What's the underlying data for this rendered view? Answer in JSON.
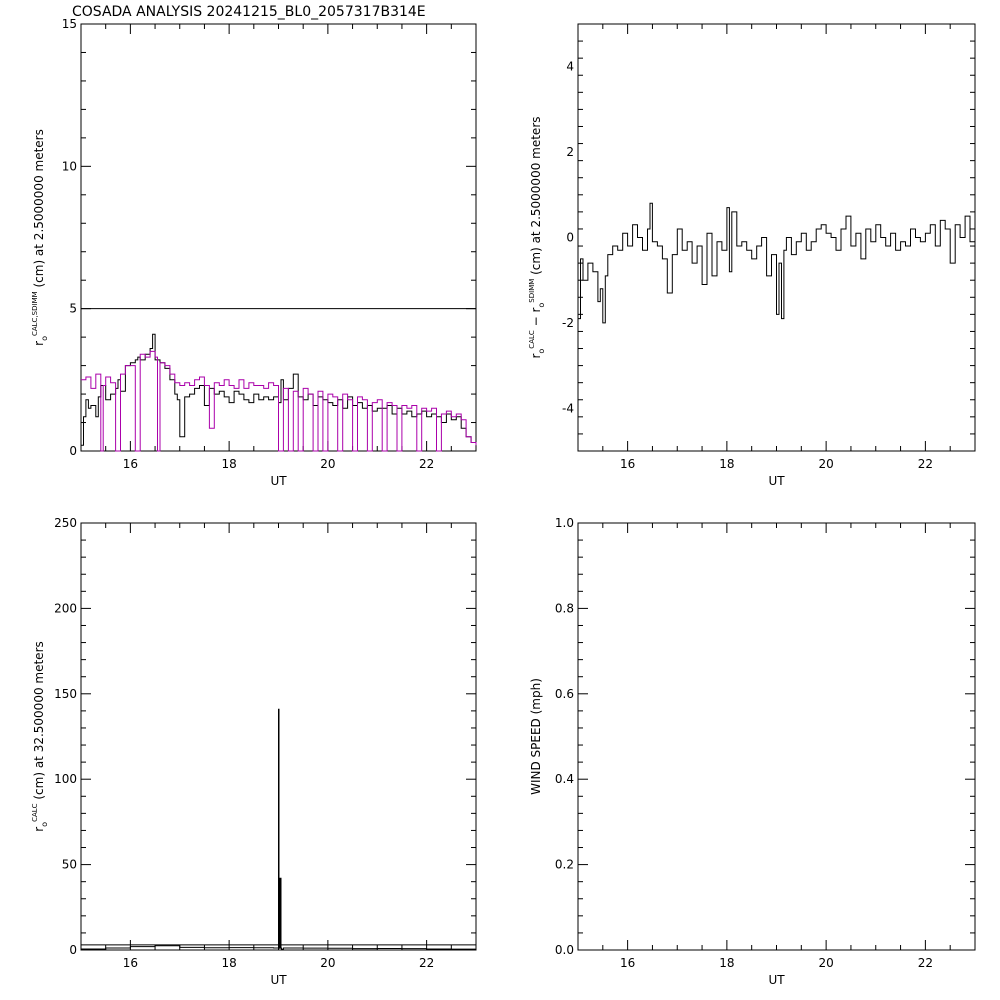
{
  "title": "COSADA ANALYSIS 20241215_BL0_2057317B314E",
  "colors": {
    "axis": "#000000",
    "black_series": "#000000",
    "magenta_series": "#aa00aa"
  },
  "chart_data": [
    {
      "type": "line",
      "panel": "top-left",
      "xlabel": "UT",
      "ylabel": {
        "main": "r",
        "sub": "o",
        "sup": "CALC,SDIMM",
        "rest": " (cm)  at  2.5000000 meters"
      },
      "xlim": [
        15,
        23
      ],
      "ylim": [
        0,
        15
      ],
      "xticks": [
        "16",
        "18",
        "20",
        "22"
      ],
      "xtick_values": [
        16,
        18,
        20,
        22
      ],
      "yticks": [
        "0",
        "5",
        "10",
        "15"
      ],
      "ytick_values": [
        0,
        5,
        10,
        15
      ],
      "hline": 5,
      "series": [
        {
          "color": "#000000",
          "x": [
            15.0,
            15.05,
            15.1,
            15.15,
            15.2,
            15.3,
            15.35,
            15.4,
            15.5,
            15.6,
            15.7,
            15.75,
            15.8,
            15.9,
            16.0,
            16.1,
            16.15,
            16.2,
            16.3,
            16.4,
            16.45,
            16.5,
            16.6,
            16.7,
            16.8,
            16.9,
            16.95,
            17.0,
            17.1,
            17.2,
            17.3,
            17.4,
            17.5,
            17.6,
            17.7,
            17.8,
            17.9,
            18.0,
            18.1,
            18.2,
            18.3,
            18.4,
            18.5,
            18.6,
            18.7,
            18.8,
            18.9,
            19.0,
            19.05,
            19.1,
            19.2,
            19.3,
            19.4,
            19.5,
            19.6,
            19.7,
            19.8,
            19.9,
            20.0,
            20.1,
            20.2,
            20.3,
            20.4,
            20.5,
            20.6,
            20.7,
            20.8,
            20.9,
            21.0,
            21.1,
            21.2,
            21.3,
            21.4,
            21.5,
            21.6,
            21.7,
            21.8,
            21.9,
            22.0,
            22.1,
            22.2,
            22.3,
            22.4,
            22.5,
            22.6,
            22.7,
            22.8,
            22.9,
            23.0
          ],
          "y": [
            0.2,
            1.2,
            1.8,
            1.5,
            1.6,
            1.2,
            1.9,
            2.3,
            1.8,
            2.0,
            2.2,
            2.5,
            2.1,
            3.0,
            3.1,
            3.2,
            3.3,
            3.2,
            3.4,
            3.6,
            4.1,
            3.2,
            3.1,
            2.9,
            2.5,
            2.0,
            1.8,
            0.5,
            1.9,
            2.0,
            2.2,
            2.3,
            1.6,
            2.2,
            2.0,
            2.1,
            1.9,
            1.7,
            2.1,
            2.0,
            1.8,
            1.7,
            2.0,
            1.8,
            1.9,
            1.8,
            1.9,
            1.7,
            2.5,
            1.8,
            2.2,
            2.7,
            1.9,
            1.8,
            2.0,
            1.6,
            1.9,
            1.8,
            1.7,
            1.6,
            1.8,
            1.5,
            1.9,
            1.6,
            1.7,
            1.5,
            1.6,
            1.4,
            1.5,
            1.5,
            1.6,
            1.3,
            1.5,
            1.3,
            1.4,
            1.2,
            1.3,
            1.4,
            1.2,
            1.3,
            1.2,
            1.0,
            1.3,
            1.1,
            1.2,
            0.8,
            0.5,
            0.3,
            0.1
          ]
        },
        {
          "color": "#aa00aa",
          "x": [
            15.0,
            15.1,
            15.2,
            15.3,
            15.4,
            15.45,
            15.5,
            15.6,
            15.7,
            15.8,
            15.9,
            16.0,
            16.1,
            16.2,
            16.3,
            16.4,
            16.5,
            16.55,
            16.6,
            16.7,
            16.8,
            16.9,
            17.0,
            17.1,
            17.2,
            17.3,
            17.4,
            17.5,
            17.6,
            17.7,
            17.8,
            17.9,
            18.0,
            18.1,
            18.2,
            18.3,
            18.4,
            18.5,
            18.6,
            18.7,
            18.8,
            18.9,
            19.0,
            19.1,
            19.2,
            19.3,
            19.4,
            19.5,
            19.6,
            19.7,
            19.8,
            19.9,
            20.0,
            20.1,
            20.2,
            20.3,
            20.4,
            20.5,
            20.6,
            20.7,
            20.8,
            20.9,
            21.0,
            21.1,
            21.2,
            21.3,
            21.4,
            21.5,
            21.6,
            21.7,
            21.8,
            21.9,
            22.0,
            22.1,
            22.2,
            22.3,
            22.4,
            22.5,
            22.6,
            22.7,
            22.8,
            22.9,
            23.0
          ],
          "y": [
            2.5,
            2.6,
            2.2,
            2.7,
            0.0,
            2.3,
            2.6,
            2.4,
            0.0,
            2.7,
            3.0,
            3.0,
            0.0,
            3.4,
            3.3,
            3.5,
            3.3,
            0.0,
            3.1,
            3.0,
            2.7,
            2.4,
            2.3,
            2.4,
            2.3,
            2.5,
            2.6,
            2.3,
            0.8,
            2.4,
            2.3,
            2.5,
            2.3,
            2.2,
            2.5,
            2.2,
            2.4,
            2.3,
            2.3,
            2.2,
            2.4,
            2.3,
            0.0,
            2.2,
            0.0,
            2.1,
            0.0,
            2.2,
            2.0,
            0.0,
            2.1,
            0.0,
            2.0,
            1.9,
            0.0,
            2.0,
            1.8,
            0.0,
            1.9,
            1.8,
            0.0,
            1.7,
            1.8,
            0.0,
            1.7,
            1.6,
            0.0,
            1.6,
            1.5,
            1.6,
            0.0,
            1.5,
            1.4,
            1.5,
            0.0,
            1.3,
            1.4,
            1.2,
            1.3,
            1.1,
            0.5,
            0.3,
            0.2
          ]
        }
      ]
    },
    {
      "type": "line",
      "panel": "top-right",
      "xlabel": "UT",
      "ylabel": {
        "main": "r",
        "sub": "o",
        "sup": "CALC",
        "rest2main": "r",
        "rest2sub": "o",
        "rest2sup": "SDIMM",
        "rest": " (cm)  at  2.5000000 meters"
      },
      "xlim": [
        15,
        23
      ],
      "ylim": [
        -5,
        5
      ],
      "xticks": [
        "16",
        "18",
        "20",
        "22"
      ],
      "xtick_values": [
        16,
        18,
        20,
        22
      ],
      "yticks": [
        "-4",
        "-2",
        "0",
        "2",
        "4"
      ],
      "ytick_values": [
        -4,
        -2,
        0,
        2,
        4
      ],
      "series": [
        {
          "color": "#000000",
          "x": [
            15.0,
            15.05,
            15.1,
            15.2,
            15.3,
            15.4,
            15.45,
            15.5,
            15.55,
            15.6,
            15.7,
            15.8,
            15.9,
            16.0,
            16.1,
            16.2,
            16.3,
            16.4,
            16.45,
            16.5,
            16.6,
            16.7,
            16.8,
            16.9,
            17.0,
            17.1,
            17.2,
            17.3,
            17.4,
            17.5,
            17.6,
            17.7,
            17.8,
            17.9,
            18.0,
            18.05,
            18.1,
            18.2,
            18.3,
            18.4,
            18.5,
            18.6,
            18.7,
            18.8,
            18.9,
            19.0,
            19.05,
            19.1,
            19.15,
            19.2,
            19.3,
            19.4,
            19.5,
            19.6,
            19.7,
            19.8,
            19.9,
            20.0,
            20.1,
            20.2,
            20.3,
            20.4,
            20.5,
            20.6,
            20.7,
            20.8,
            20.9,
            21.0,
            21.1,
            21.2,
            21.3,
            21.4,
            21.5,
            21.6,
            21.7,
            21.8,
            21.9,
            22.0,
            22.1,
            22.2,
            22.3,
            22.4,
            22.5,
            22.6,
            22.7,
            22.8,
            22.9,
            23.0
          ],
          "y": [
            -1.9,
            -0.5,
            -1.0,
            -0.6,
            -0.8,
            -1.5,
            -1.2,
            -2.0,
            -0.9,
            -0.4,
            -0.2,
            -0.3,
            0.1,
            -0.2,
            0.3,
            0.0,
            -0.3,
            0.2,
            0.8,
            -0.1,
            -0.2,
            -0.5,
            -1.3,
            -0.4,
            0.2,
            -0.3,
            -0.1,
            -0.6,
            -0.2,
            -1.1,
            0.1,
            -0.9,
            -0.1,
            -0.3,
            0.7,
            -0.8,
            0.6,
            -0.2,
            -0.1,
            -0.3,
            -0.5,
            -0.2,
            0.0,
            -0.9,
            -0.4,
            -1.8,
            -0.6,
            -1.9,
            -0.3,
            0.0,
            -0.4,
            -0.1,
            0.1,
            -0.3,
            -0.1,
            0.2,
            0.3,
            0.1,
            0.0,
            -0.3,
            0.2,
            0.5,
            -0.2,
            0.1,
            -0.5,
            0.2,
            -0.1,
            0.3,
            0.0,
            -0.2,
            0.1,
            -0.3,
            -0.1,
            -0.2,
            0.2,
            0.0,
            -0.1,
            0.1,
            0.3,
            -0.2,
            0.4,
            0.2,
            -0.6,
            0.3,
            0.0,
            0.5,
            -0.1,
            0.0
          ]
        }
      ]
    },
    {
      "type": "line",
      "panel": "bottom-left",
      "xlabel": "UT",
      "ylabel": {
        "main": "r",
        "sub": "o",
        "sup": "CALC",
        "rest": " (cm)  at  32.500000 meters"
      },
      "xlim": [
        15,
        23
      ],
      "ylim": [
        0,
        250
      ],
      "xticks": [
        "16",
        "18",
        "20",
        "22"
      ],
      "xtick_values": [
        16,
        18,
        20,
        22
      ],
      "yticks": [
        "0",
        "50",
        "100",
        "150",
        "200",
        "250"
      ],
      "ytick_values": [
        0,
        50,
        100,
        150,
        200,
        250
      ],
      "hline": 3,
      "series": [
        {
          "color": "#000000",
          "x": [
            15.0,
            15.5,
            16.0,
            16.5,
            17.0,
            17.5,
            18.0,
            18.5,
            18.9,
            18.97,
            19.0,
            19.01,
            19.03,
            19.05,
            19.06,
            19.1,
            19.5,
            20.0,
            20.5,
            21.0,
            21.5,
            22.0,
            22.5,
            23.0
          ],
          "y": [
            0.6,
            1.2,
            2.0,
            2.5,
            1.5,
            1.3,
            1.4,
            1.3,
            1.2,
            1.2,
            141,
            1.0,
            42,
            1.1,
            0.5,
            1.2,
            1.1,
            1.0,
            0.8,
            0.9,
            0.8,
            0.6,
            0.5,
            0.3
          ]
        }
      ]
    },
    {
      "type": "line",
      "panel": "bottom-right",
      "xlabel": "UT",
      "ylabel": {
        "main": "WIND SPEED (mph)"
      },
      "xlim": [
        15,
        23
      ],
      "ylim": [
        0,
        1
      ],
      "xticks": [
        "16",
        "18",
        "20",
        "22"
      ],
      "xtick_values": [
        16,
        18,
        20,
        22
      ],
      "yticks": [
        "0.0",
        "0.2",
        "0.4",
        "0.6",
        "0.8",
        "1.0"
      ],
      "ytick_values": [
        0,
        0.2,
        0.4,
        0.6,
        0.8,
        1.0
      ],
      "series": []
    }
  ]
}
